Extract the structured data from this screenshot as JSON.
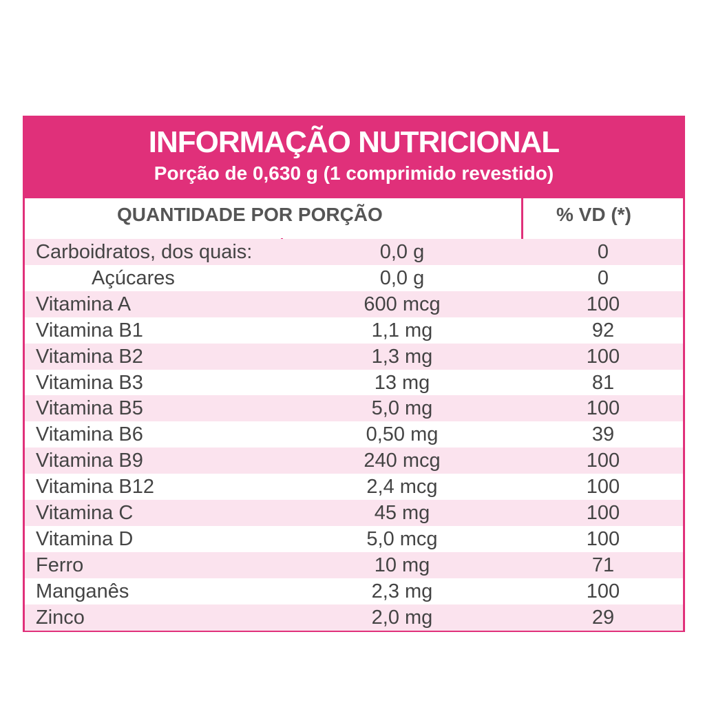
{
  "header": {
    "title": "INFORMAÇÃO NUTRICIONAL",
    "subtitle": "Porção de 0,630 g (1 comprimido revestido)"
  },
  "table": {
    "columns": [
      "QUANTIDADE POR PORÇÃO",
      "% VD (*)"
    ],
    "rows": [
      [
        "Carboidratos, dos quais:",
        "0,0 g",
        0
      ],
      [
        "Açúcares",
        "0,0 g",
        0
      ],
      [
        "Vitamina A",
        "600 mcg",
        100
      ],
      [
        "Vitamina B1",
        "1,1 mg",
        92
      ],
      [
        "Vitamina B2",
        "1,3 mg",
        100
      ],
      [
        "Vitamina B3",
        "13 mg",
        81
      ],
      [
        "Vitamina B5",
        "5,0 mg",
        100
      ],
      [
        "Vitamina B6",
        "0,50 mg",
        39
      ],
      [
        "Vitamina B9",
        "240 mcg",
        100
      ],
      [
        "Vitamina B12",
        "2,4 mcg",
        100
      ],
      [
        "Vitamina C",
        "45 mg",
        100
      ],
      [
        "Vitamina D",
        "5,0 mcg",
        100
      ],
      [
        "Ferro",
        "10 mg",
        71
      ],
      [
        "Manganês",
        "2,3 mg",
        100
      ],
      [
        "Zinco",
        "2,0 mg",
        29
      ]
    ]
  }
}
